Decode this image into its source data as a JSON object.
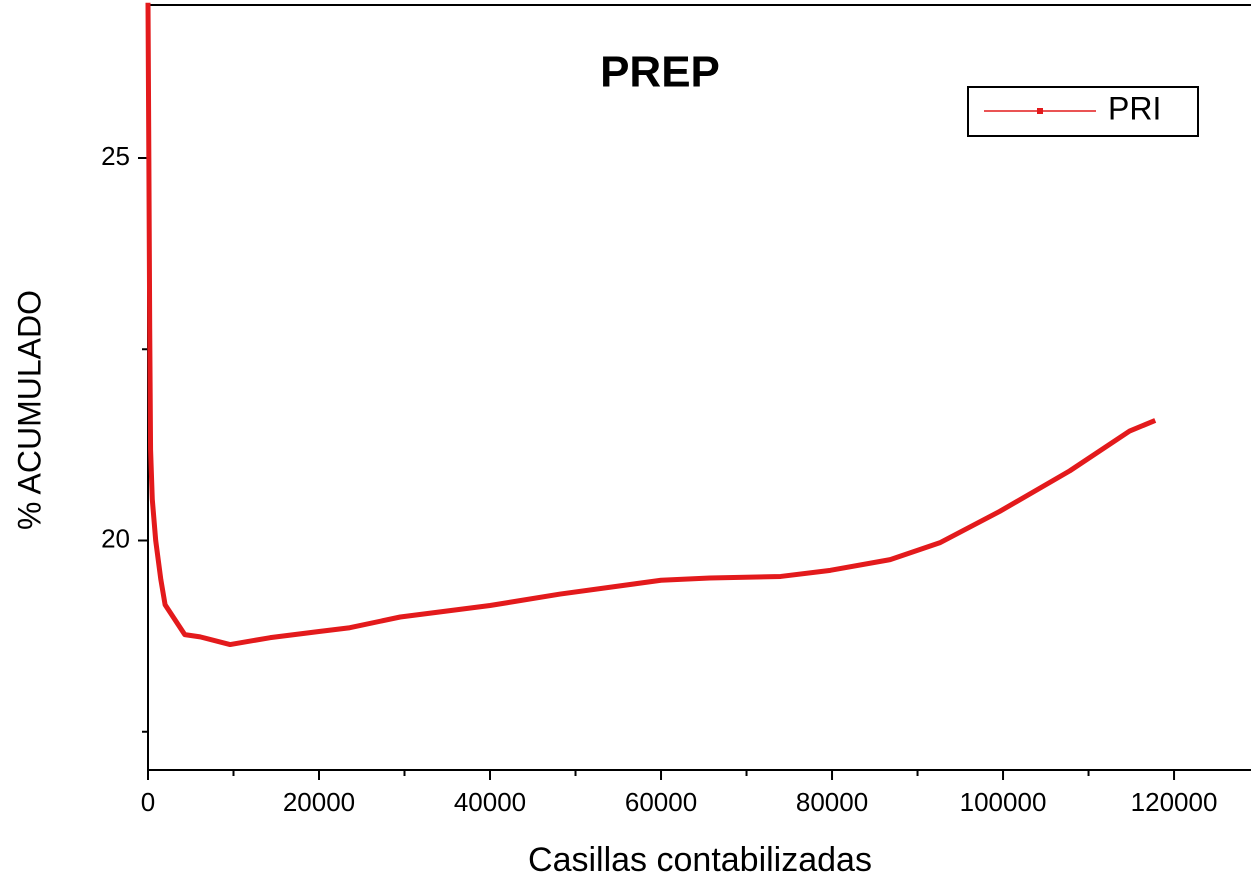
{
  "chart_data": {
    "type": "line",
    "title": "PREP",
    "x_label": "Casillas contabilizadas",
    "y_label": "% ACUMULADO",
    "xlim": [
      0,
      129000
    ],
    "ylim": [
      17,
      27
    ],
    "xticks": [
      0,
      20000,
      40000,
      60000,
      80000,
      100000,
      120000
    ],
    "xminor_ticks": [
      10000,
      30000,
      50000,
      70000,
      90000,
      110000
    ],
    "yticks": [
      20,
      25
    ],
    "yminor_ticks": [
      17.5,
      22.5
    ],
    "legend": "upper right",
    "series": [
      {
        "name": "PRI",
        "color": "#e31a1c",
        "x": [
          0,
          100,
          200,
          300,
          500,
          900,
          1500,
          2000,
          4300,
          6100,
          9600,
          14300,
          20000,
          23600,
          29500,
          40000,
          48200,
          60000,
          65700,
          74000,
          79800,
          86800,
          92600,
          99600,
          107800,
          114800,
          117800
        ],
        "values": [
          27.03,
          25,
          22.77,
          21.19,
          20.54,
          20.0,
          19.49,
          19.16,
          18.77,
          18.74,
          18.64,
          18.73,
          18.81,
          18.86,
          19.0,
          19.15,
          19.3,
          19.48,
          19.51,
          19.53,
          19.61,
          19.75,
          19.97,
          20.38,
          20.91,
          21.43,
          21.57
        ]
      }
    ]
  }
}
